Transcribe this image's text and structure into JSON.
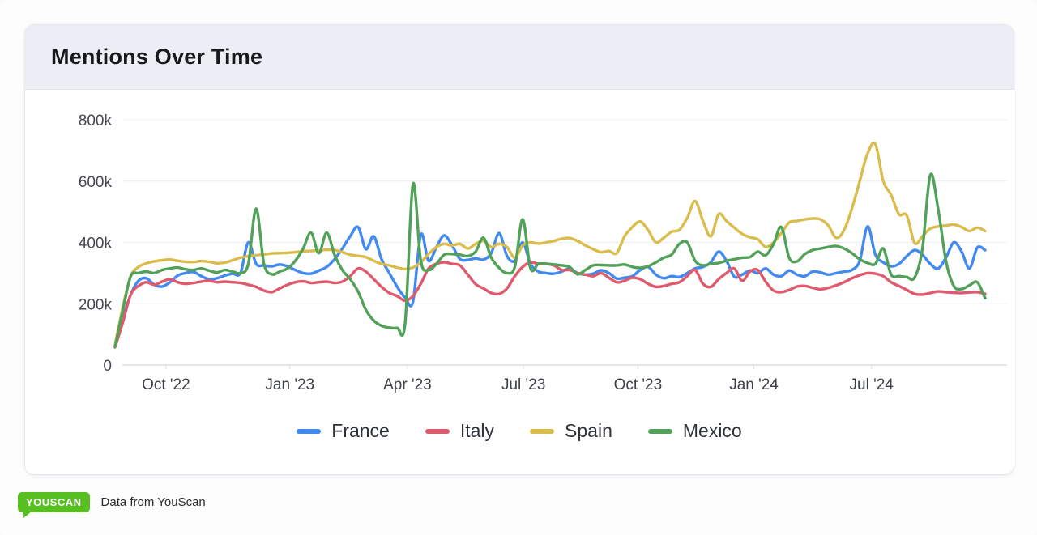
{
  "page": {
    "title": "Mentions Over Time"
  },
  "footer": {
    "logo_text": "YOUSCAN",
    "caption": "Data from YouScan",
    "logo_color": "#58bf23"
  },
  "chart_data": {
    "type": "line",
    "title": "Mentions Over Time",
    "xlabel": "",
    "ylabel": "",
    "values_unit": "mentions (thousands)",
    "x_unit": "week index (weekly points, Aug 2022 - Oct 2024)",
    "ylim": [
      0,
      800000
    ],
    "grid": "horizontal",
    "legend_position": "bottom",
    "y_ticks": [
      {
        "label": "0",
        "value": 0
      },
      {
        "label": "200k",
        "value": 200
      },
      {
        "label": "400k",
        "value": 400
      },
      {
        "label": "600k",
        "value": 600
      },
      {
        "label": "800k",
        "value": 800
      }
    ],
    "x_ticks": [
      {
        "label": "Oct '22",
        "week": 6.5
      },
      {
        "label": "Jan '23",
        "week": 22.3
      },
      {
        "label": "Apr '23",
        "week": 37.3
      },
      {
        "label": "Jul '23",
        "week": 52.1
      },
      {
        "label": "Oct '23",
        "week": 66.7
      },
      {
        "label": "Jan '24",
        "week": 81.5
      },
      {
        "label": "Jul '24",
        "week": 96.5
      }
    ],
    "series": [
      {
        "name": "France",
        "color": "#4289f0",
        "values": [
          62,
          150,
          230,
          275,
          283,
          262,
          256,
          270,
          292,
          300,
          304,
          290,
          280,
          283,
          292,
          298,
          300,
          400,
          330,
          325,
          322,
          328,
          322,
          310,
          300,
          298,
          308,
          320,
          345,
          380,
          420,
          450,
          378,
          420,
          345,
          300,
          255,
          220,
          206,
          425,
          340,
          385,
          423,
          390,
          346,
          343,
          348,
          344,
          365,
          430,
          356,
          340,
          400,
          330,
          305,
          300,
          298,
          305,
          315,
          300,
          295,
          298,
          309,
          300,
          282,
          285,
          290,
          310,
          320,
          295,
          283,
          290,
          287,
          300,
          315,
          320,
          335,
          370,
          340,
          288,
          295,
          308,
          300,
          315,
          295,
          290,
          308,
          295,
          290,
          305,
          302,
          295,
          300,
          305,
          310,
          340,
          452,
          360,
          335,
          322,
          330,
          355,
          375,
          360,
          330,
          315,
          350,
          400,
          370,
          315,
          383,
          375
        ]
      },
      {
        "name": "Italy",
        "color": "#e05a6e",
        "values": [
          58,
          140,
          230,
          258,
          270,
          262,
          272,
          280,
          270,
          265,
          268,
          272,
          275,
          270,
          272,
          270,
          268,
          262,
          255,
          243,
          238,
          250,
          262,
          270,
          273,
          268,
          270,
          272,
          268,
          272,
          290,
          315,
          305,
          280,
          255,
          235,
          225,
          210,
          225,
          265,
          315,
          330,
          335,
          330,
          325,
          295,
          264,
          250,
          235,
          232,
          250,
          290,
          320,
          335,
          330,
          330,
          325,
          310,
          310,
          300,
          295,
          290,
          300,
          285,
          270,
          275,
          285,
          280,
          265,
          255,
          258,
          265,
          270,
          290,
          310,
          265,
          255,
          280,
          300,
          315,
          275,
          305,
          310,
          272,
          243,
          238,
          245,
          256,
          258,
          252,
          247,
          252,
          260,
          270,
          283,
          293,
          300,
          298,
          290,
          270,
          258,
          245,
          232,
          230,
          235,
          240,
          238,
          236,
          235,
          237,
          238,
          232
        ]
      },
      {
        "name": "Spain",
        "color": "#d9bc4b",
        "values": [
          66,
          190,
          290,
          320,
          332,
          338,
          342,
          344,
          340,
          337,
          336,
          339,
          337,
          332,
          334,
          342,
          350,
          355,
          358,
          361,
          364,
          365,
          366,
          368,
          371,
          372,
          374,
          376,
          375,
          368,
          360,
          356,
          352,
          340,
          330,
          325,
          318,
          313,
          318,
          335,
          362,
          385,
          395,
          390,
          395,
          380,
          395,
          405,
          385,
          395,
          385,
          350,
          390,
          400,
          396,
          400,
          405,
          412,
          414,
          405,
          390,
          378,
          368,
          372,
          365,
          420,
          450,
          468,
          440,
          400,
          415,
          435,
          441,
          480,
          535,
          470,
          420,
          492,
          470,
          448,
          428,
          417,
          410,
          385,
          400,
          430,
          465,
          470,
          475,
          478,
          475,
          455,
          415,
          440,
          510,
          600,
          690,
          720,
          600,
          555,
          492,
          488,
          398,
          420,
          445,
          452,
          455,
          458,
          450,
          437,
          448,
          437
        ]
      },
      {
        "name": "Mexico",
        "color": "#52a158",
        "values": [
          60,
          180,
          290,
          300,
          305,
          300,
          310,
          315,
          318,
          312,
          310,
          315,
          308,
          302,
          310,
          305,
          300,
          330,
          510,
          330,
          296,
          305,
          315,
          340,
          380,
          432,
          365,
          432,
          360,
          310,
          280,
          240,
          180,
          145,
          128,
          122,
          121,
          135,
          590,
          340,
          310,
          330,
          360,
          362,
          360,
          355,
          370,
          415,
          350,
          317,
          300,
          320,
          475,
          315,
          330,
          330,
          328,
          325,
          320,
          296,
          310,
          325,
          326,
          325,
          325,
          328,
          320,
          317,
          322,
          335,
          350,
          360,
          395,
          400,
          340,
          325,
          330,
          333,
          340,
          345,
          350,
          352,
          370,
          358,
          395,
          450,
          350,
          338,
          362,
          375,
          380,
          385,
          388,
          380,
          365,
          345,
          333,
          330,
          380,
          295,
          290,
          287,
          285,
          380,
          620,
          510,
          340,
          258,
          248,
          260,
          270,
          218
        ]
      }
    ]
  }
}
